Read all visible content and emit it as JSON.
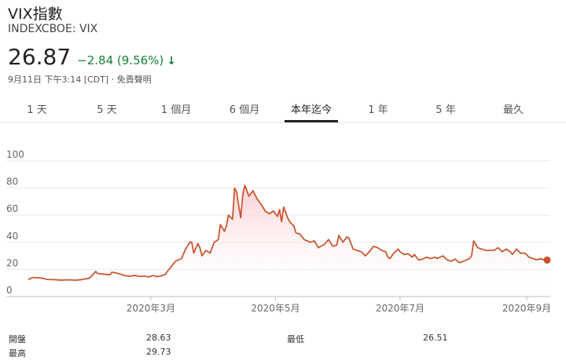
{
  "header": {
    "title": "VIX指數",
    "ticker": "INDEXCBOE: VIX",
    "price": "26.87",
    "change": "−2.84 (9.56%)",
    "direction_icon": "down-arrow-icon",
    "timestamp": "9月11日 下午3:14 [CDT]",
    "disclaimer": "免責聲明"
  },
  "tabs": [
    {
      "label": "1 天",
      "active": false
    },
    {
      "label": "5 天",
      "active": false
    },
    {
      "label": "1 個月",
      "active": false
    },
    {
      "label": "6 個月",
      "active": false
    },
    {
      "label": "本年迄今",
      "active": true
    },
    {
      "label": "1 年",
      "active": false
    },
    {
      "label": "5 年",
      "active": false
    },
    {
      "label": "最久",
      "active": false
    }
  ],
  "colors": {
    "line": "#c8502a",
    "fill": "#f9c6c9",
    "positive_text": "#188038",
    "axis_text": "#666666"
  },
  "stats": {
    "open_label": "開盤",
    "open_value": "28.63",
    "high_label": "最高",
    "high_value": "29.73",
    "low_label": "最低",
    "low_value": "26.51"
  },
  "chart_data": {
    "type": "area",
    "title": "",
    "xlabel": "",
    "ylabel": "",
    "ylim": [
      0,
      100
    ],
    "yticks": [
      0,
      20,
      40,
      60,
      80,
      100
    ],
    "xtick_labels": [
      {
        "label": "2020年3月",
        "date": "2020-03-01"
      },
      {
        "label": "2020年5月",
        "date": "2020-05-01"
      },
      {
        "label": "2020年7月",
        "date": "2020-07-01"
      },
      {
        "label": "2020年9月",
        "date": "2020-09-01"
      }
    ],
    "x_range": [
      "2020-01-01",
      "2020-09-11"
    ],
    "grid": "horizontal",
    "series": [
      {
        "points": [
          [
            "2020-01-01",
            12.5
          ],
          [
            "2020-01-03",
            14.0
          ],
          [
            "2020-01-06",
            13.8
          ],
          [
            "2020-01-08",
            13.5
          ],
          [
            "2020-01-10",
            12.6
          ],
          [
            "2020-01-14",
            12.4
          ],
          [
            "2020-01-17",
            12.1
          ],
          [
            "2020-01-21",
            12.3
          ],
          [
            "2020-01-24",
            12.0
          ],
          [
            "2020-01-27",
            12.4
          ],
          [
            "2020-01-28",
            12.8
          ],
          [
            "2020-01-31",
            13.5
          ],
          [
            "2020-02-03",
            18.5
          ],
          [
            "2020-02-04",
            17.0
          ],
          [
            "2020-02-07",
            16.5
          ],
          [
            "2020-02-10",
            16.0
          ],
          [
            "2020-02-11",
            18.0
          ],
          [
            "2020-02-14",
            17.0
          ],
          [
            "2020-02-17",
            15.5
          ],
          [
            "2020-02-20",
            15.0
          ],
          [
            "2020-02-22",
            15.6
          ],
          [
            "2020-02-25",
            14.8
          ],
          [
            "2020-02-27",
            15.0
          ],
          [
            "2020-02-29",
            14.4
          ],
          [
            "2020-03-02",
            15.5
          ],
          [
            "2020-03-04",
            14.6
          ],
          [
            "2020-03-06",
            15.2
          ],
          [
            "2020-03-08",
            16.2
          ],
          [
            "2020-03-09",
            18.5
          ],
          [
            "2020-03-11",
            22.0
          ],
          [
            "2020-03-13",
            26.0
          ],
          [
            "2020-03-16",
            28.0
          ],
          [
            "2020-03-18",
            35.0
          ],
          [
            "2020-03-20",
            40.0
          ],
          [
            "2020-03-21",
            40.2
          ],
          [
            "2020-03-22",
            32.0
          ],
          [
            "2020-03-24",
            39.0
          ],
          [
            "2020-03-25",
            36.0
          ],
          [
            "2020-03-26",
            30.0
          ],
          [
            "2020-03-28",
            34.0
          ],
          [
            "2020-03-30",
            32.0
          ],
          [
            "2020-04-01",
            40.0
          ],
          [
            "2020-04-03",
            42.0
          ],
          [
            "2020-04-04",
            53.0
          ],
          [
            "2020-04-06",
            48.0
          ],
          [
            "2020-04-07",
            52.0
          ],
          [
            "2020-04-08",
            60.0
          ],
          [
            "2020-04-10",
            57.0
          ],
          [
            "2020-04-11",
            80.0
          ],
          [
            "2020-04-12",
            77.0
          ],
          [
            "2020-04-14",
            58.0
          ],
          [
            "2020-04-15",
            75.0
          ],
          [
            "2020-04-16",
            82.0
          ],
          [
            "2020-04-18",
            74.0
          ],
          [
            "2020-04-20",
            78.0
          ],
          [
            "2020-04-22",
            72.0
          ],
          [
            "2020-04-24",
            68.0
          ],
          [
            "2020-04-26",
            63.0
          ],
          [
            "2020-04-28",
            61.0
          ],
          [
            "2020-04-30",
            63.0
          ],
          [
            "2020-05-02",
            59.0
          ],
          [
            "2020-05-03",
            64.0
          ],
          [
            "2020-05-04",
            55.0
          ],
          [
            "2020-05-05",
            66.0
          ],
          [
            "2020-05-07",
            58.0
          ],
          [
            "2020-05-08",
            55.0
          ],
          [
            "2020-05-10",
            52.0
          ],
          [
            "2020-05-11",
            47.0
          ],
          [
            "2020-05-13",
            46.0
          ],
          [
            "2020-05-15",
            42.0
          ],
          [
            "2020-05-18",
            40.0
          ],
          [
            "2020-05-20",
            41.0
          ],
          [
            "2020-05-22",
            36.0
          ],
          [
            "2020-05-25",
            38.5
          ],
          [
            "2020-05-27",
            42.0
          ],
          [
            "2020-05-29",
            37.0
          ],
          [
            "2020-05-31",
            38.0
          ],
          [
            "2020-06-01",
            45.0
          ],
          [
            "2020-06-03",
            40.0
          ],
          [
            "2020-06-05",
            44.0
          ],
          [
            "2020-06-06",
            43.0
          ],
          [
            "2020-06-08",
            35.0
          ],
          [
            "2020-06-10",
            34.0
          ],
          [
            "2020-06-12",
            33.0
          ],
          [
            "2020-06-14",
            30.0
          ],
          [
            "2020-06-16",
            33.0
          ],
          [
            "2020-06-18",
            37.0
          ],
          [
            "2020-06-20",
            36.0
          ],
          [
            "2020-06-22",
            34.0
          ],
          [
            "2020-06-24",
            33.0
          ],
          [
            "2020-06-25",
            29.0
          ],
          [
            "2020-06-26",
            28.0
          ],
          [
            "2020-06-28",
            32.0
          ],
          [
            "2020-06-30",
            35.0
          ],
          [
            "2020-07-01",
            33.0
          ],
          [
            "2020-07-03",
            31.0
          ],
          [
            "2020-07-05",
            31.5
          ],
          [
            "2020-07-07",
            29.0
          ],
          [
            "2020-07-08",
            31.0
          ],
          [
            "2020-07-10",
            27.0
          ],
          [
            "2020-07-12",
            27.5
          ],
          [
            "2020-07-14",
            29.0
          ],
          [
            "2020-07-16",
            28.0
          ],
          [
            "2020-07-18",
            29.0
          ],
          [
            "2020-07-19",
            28.0
          ],
          [
            "2020-07-22",
            30.0
          ],
          [
            "2020-07-24",
            27.0
          ],
          [
            "2020-07-26",
            26.0
          ],
          [
            "2020-07-28",
            27.5
          ],
          [
            "2020-07-30",
            25.0
          ],
          [
            "2020-08-01",
            26.0
          ],
          [
            "2020-08-04",
            28.0
          ],
          [
            "2020-08-05",
            30.0
          ],
          [
            "2020-08-06",
            41.0
          ],
          [
            "2020-08-08",
            36.0
          ],
          [
            "2020-08-10",
            35.0
          ],
          [
            "2020-08-12",
            34.0
          ],
          [
            "2020-08-14",
            34.0
          ],
          [
            "2020-08-16",
            34.0
          ],
          [
            "2020-08-18",
            36.0
          ],
          [
            "2020-08-20",
            33.0
          ],
          [
            "2020-08-22",
            35.0
          ],
          [
            "2020-08-24",
            33.0
          ],
          [
            "2020-08-25",
            31.0
          ],
          [
            "2020-08-27",
            35.0
          ],
          [
            "2020-08-29",
            32.0
          ],
          [
            "2020-08-31",
            32.0
          ],
          [
            "2020-09-01",
            31.0
          ],
          [
            "2020-09-02",
            29.0
          ],
          [
            "2020-09-04",
            28.0
          ],
          [
            "2020-09-06",
            27.0
          ],
          [
            "2020-09-08",
            28.0
          ],
          [
            "2020-09-10",
            26.5
          ],
          [
            "2020-09-11",
            27.5
          ]
        ]
      }
    ],
    "last_value": 26.87
  }
}
